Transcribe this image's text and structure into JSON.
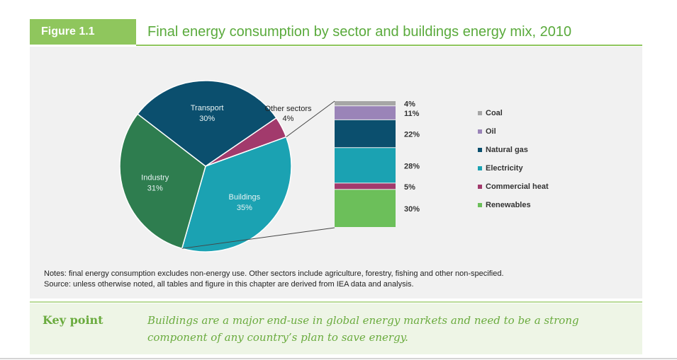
{
  "figure": {
    "label": "Figure 1.1",
    "title": "Final energy consumption by sector and buildings energy mix, 2010"
  },
  "notes": {
    "line1": "Notes: final energy consumption excludes non-energy use. Other sectors include agriculture, forestry, fishing and other non-specified.",
    "line2": "Source: unless otherwise noted, all tables and figure in this chapter are derived from IEA data and analysis."
  },
  "key_point": {
    "label": "Key point",
    "text": "Buildings are a major end-use in global energy markets and need to be a strong component of any country’s plan to save energy."
  },
  "chart_data": [
    {
      "type": "pie",
      "slices": [
        {
          "name": "Other sectors",
          "value": 4,
          "label": "4%",
          "color": "#a23a6c"
        },
        {
          "name": "Buildings",
          "value": 35,
          "label": "35%",
          "color": "#1ba2b2"
        },
        {
          "name": "Industry",
          "value": 31,
          "label": "31%",
          "color": "#2e7d4f"
        },
        {
          "name": "Transport",
          "value": 30,
          "label": "30%",
          "color": "#0b4f6e"
        }
      ]
    },
    {
      "type": "bar",
      "stacked": true,
      "categories": [
        "Buildings"
      ],
      "series": [
        {
          "name": "Coal",
          "value": 4,
          "label": "4%",
          "color": "#a6a6a6"
        },
        {
          "name": "Oil",
          "value": 11,
          "label": "11%",
          "color": "#9a84b8"
        },
        {
          "name": "Natural gas",
          "value": 22,
          "label": "22%",
          "color": "#0b4f6e"
        },
        {
          "name": "Electricity",
          "value": 28,
          "label": "28%",
          "color": "#1ba2b2"
        },
        {
          "name": "Commercial heat",
          "value": 5,
          "label": "5%",
          "color": "#a23a6c"
        },
        {
          "name": "Renewables",
          "value": 30,
          "label": "30%",
          "color": "#6cbf5a"
        }
      ],
      "legend_placement": "right"
    }
  ]
}
